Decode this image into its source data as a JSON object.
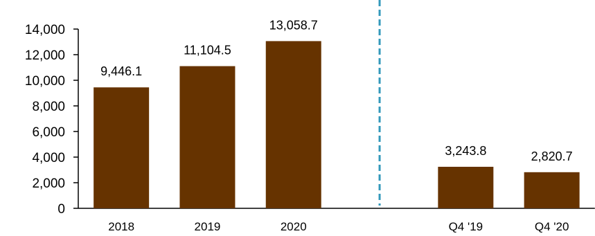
{
  "chart_data": {
    "type": "bar",
    "categories": [
      "2018",
      "2019",
      "2020",
      "",
      "Q4 '19",
      "Q4 '20"
    ],
    "values": [
      9446.1,
      11104.5,
      13058.7,
      null,
      3243.8,
      2820.7
    ],
    "data_labels": [
      "9,446.1",
      "11,104.5",
      "13,058.7",
      "",
      "3,243.8",
      "2,820.7"
    ],
    "ylim": [
      0,
      14000
    ],
    "yticks": [
      0,
      2000,
      4000,
      6000,
      8000,
      10000,
      12000,
      14000
    ],
    "ytick_labels": [
      "0",
      "2,000",
      "4,000",
      "6,000",
      "8,000",
      "10,000",
      "12,000",
      "14,000"
    ],
    "title": "",
    "xlabel": "",
    "ylabel": "",
    "grid": false,
    "legend": "none",
    "bar_color": "#663300",
    "separator_color": "#3399bb",
    "separator_style": "dashed"
  }
}
